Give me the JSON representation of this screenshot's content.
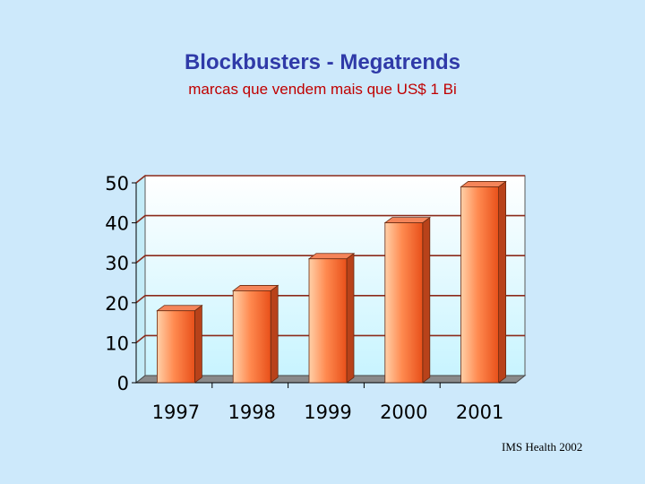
{
  "title": "Blockbusters - Megatrends",
  "subtitle": "marcas que vendem mais que US$ 1 Bi",
  "source": "IMS Health 2002",
  "colors": {
    "background": "#cde9fb",
    "title": "#2f3aa8",
    "subtitle": "#c00000",
    "bar_light": "#ffd0a8",
    "bar_mid": "#ff8a50",
    "bar_dark": "#e8501a",
    "gridline": "#8b2a1a"
  },
  "chart_data": {
    "type": "bar",
    "title": "",
    "xlabel": "",
    "ylabel": "",
    "categories": [
      "1997",
      "1998",
      "1999",
      "2000",
      "2001"
    ],
    "values": [
      18,
      23,
      31,
      40,
      49
    ],
    "ylim": [
      0,
      50
    ],
    "yticks": [
      0,
      10,
      20,
      30,
      40,
      50
    ],
    "grid": true,
    "legend": "none"
  }
}
